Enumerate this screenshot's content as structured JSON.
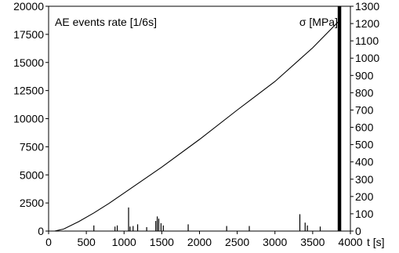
{
  "chart_data": {
    "type": "line",
    "left_axis_label": "AE events rate [1/6s]",
    "right_axis_label": "σ [MPa]",
    "x_axis_unit": "t [s]",
    "xlim": [
      0,
      4000
    ],
    "xticks": [
      0,
      500,
      1000,
      1500,
      2000,
      2500,
      3000,
      3500,
      4000
    ],
    "ylim_left": [
      0,
      20000
    ],
    "yticks_left": [
      0,
      2500,
      5000,
      7500,
      10000,
      12500,
      15000,
      17500,
      20000
    ],
    "ylim_right": [
      0,
      1300
    ],
    "yticks_right": [
      0,
      100,
      200,
      300,
      400,
      500,
      600,
      700,
      800,
      900,
      1000,
      1100,
      1200,
      1300
    ],
    "grid": false,
    "series": [
      {
        "axis": "right",
        "style": "line",
        "x": [
          80,
          200,
          400,
          600,
          800,
          1000,
          1500,
          2000,
          2500,
          3000,
          3500,
          3860
        ],
        "y": [
          0,
          12,
          55,
          105,
          160,
          220,
          370,
          530,
          700,
          865,
          1060,
          1220
        ]
      },
      {
        "axis": "left",
        "style": "spikes",
        "x": [
          600,
          880,
          910,
          1060,
          1080,
          1120,
          1180,
          1300,
          1420,
          1440,
          1460,
          1490,
          1520,
          1850,
          2360,
          2660,
          3330,
          3400,
          3430,
          3600,
          3840,
          3850,
          3860,
          3870
        ],
        "y": [
          500,
          400,
          500,
          2100,
          400,
          450,
          600,
          350,
          900,
          1300,
          1100,
          700,
          500,
          600,
          450,
          450,
          1500,
          750,
          500,
          400,
          20000,
          20000,
          20000,
          20000
        ]
      }
    ]
  }
}
